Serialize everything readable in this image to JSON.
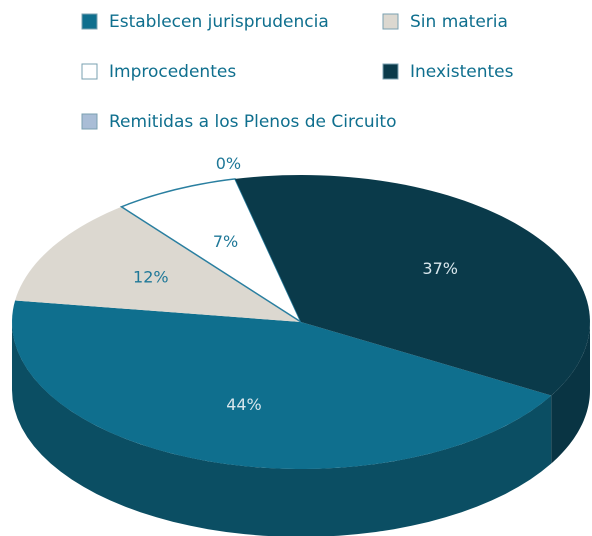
{
  "chart_data": {
    "type": "pie",
    "categories": [
      "Establecen jurisprudencia",
      "Sin materia",
      "Improcedentes",
      "Remitidas a los Plenos de Circuito",
      "Inexistentes"
    ],
    "values": [
      44,
      12,
      7,
      0,
      37
    ],
    "value_labels": [
      "44%",
      "12%",
      "7%",
      "0%",
      "37%"
    ],
    "colors": [
      "#0f6f8e",
      "#dcd8d0",
      "#ffffff",
      "#a9bdd6",
      "#0a3a4a"
    ]
  }
}
